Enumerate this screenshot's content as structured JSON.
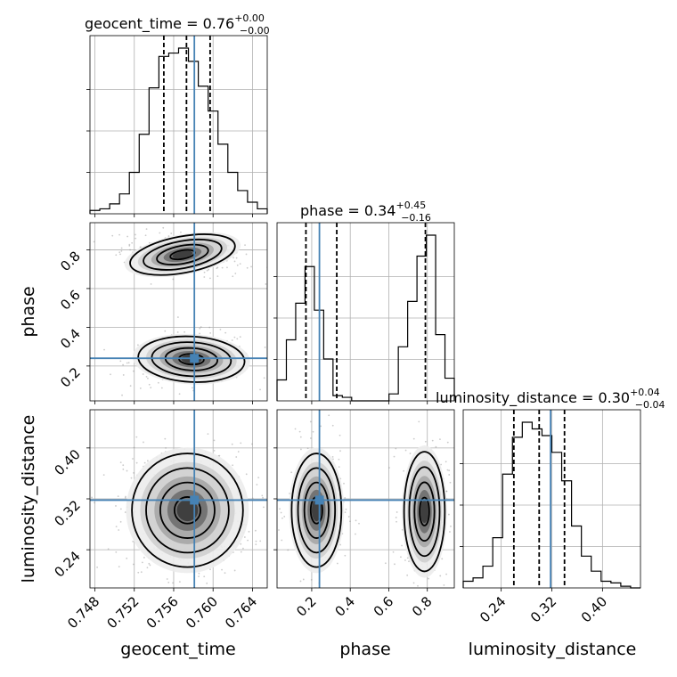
{
  "chart_data": {
    "type": "corner",
    "parameters": [
      {
        "name": "geocent_time",
        "label": "geocent_time",
        "range": [
          0.7475,
          0.7655
        ],
        "median": "0.76",
        "upper": "+0.00",
        "lower": "−0.00",
        "ticks": [
          "0.748",
          "0.752",
          "0.756",
          "0.760",
          "0.764"
        ],
        "quantiles": [
          0.755,
          0.7573,
          0.7597
        ],
        "truth": 0.7581,
        "hist_counts": [
          2,
          3,
          6,
          12,
          25,
          48,
          76,
          95,
          97,
          100,
          92,
          77,
          62,
          42,
          25,
          14,
          7,
          3
        ]
      },
      {
        "name": "phase",
        "label": "phase",
        "range": [
          0.02,
          0.94
        ],
        "median": "0.34",
        "upper": "+0.45",
        "lower": "−0.16",
        "ticks": [
          "0.2",
          "0.4",
          "0.6",
          "0.8"
        ],
        "quantiles": [
          0.17,
          0.33,
          0.79
        ],
        "truth": 0.24,
        "hist_counts": [
          12,
          35,
          56,
          77,
          52,
          24,
          3,
          2,
          0,
          0,
          0,
          0,
          4,
          31,
          57,
          83,
          95,
          38,
          13
        ]
      },
      {
        "name": "luminosity_distance",
        "label": "luminosity_distance",
        "range": [
          0.18,
          0.46
        ],
        "median": "0.30",
        "upper": "+0.04",
        "lower": "−0.04",
        "ticks": [
          "0.24",
          "0.32",
          "0.40"
        ],
        "quantiles": [
          0.26,
          0.3,
          0.34
        ],
        "truth": 0.318,
        "hist_counts": [
          4,
          6,
          13,
          30,
          68,
          90,
          99,
          95,
          91,
          81,
          64,
          37,
          19,
          10,
          4,
          3,
          1,
          0
        ]
      }
    ],
    "pairs": [
      {
        "x": "geocent_time",
        "y": "phase"
      },
      {
        "x": "geocent_time",
        "y": "luminosity_distance"
      },
      {
        "x": "phase",
        "y": "luminosity_distance"
      }
    ],
    "truth_color": "#4682b4",
    "hist_color": "#000000",
    "scatter_color": "#8c8c8c"
  }
}
